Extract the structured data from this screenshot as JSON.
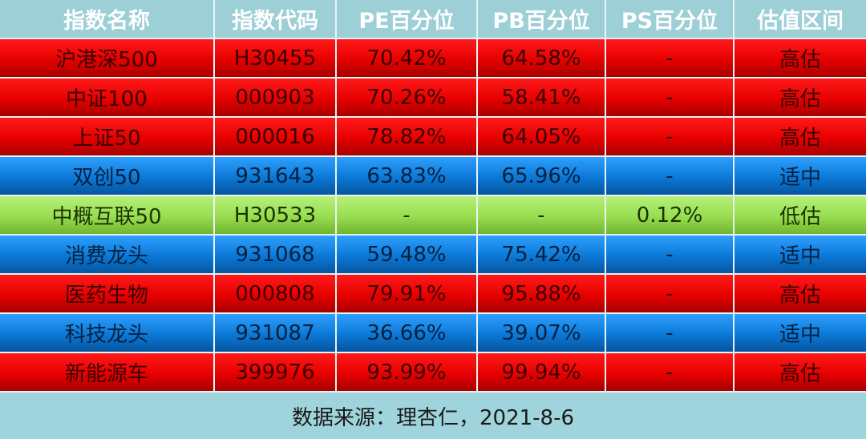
{
  "colors": {
    "header_bg": "#9ccfd6",
    "high": "#e60000",
    "mid": "#0b78d6",
    "low": "#98dc4f",
    "footer_bg": "#9fd4dc"
  },
  "headers": [
    "指数名称",
    "指数代码",
    "PE百分位",
    "PB百分位",
    "PS百分位",
    "估值区间"
  ],
  "rows": [
    {
      "level": "high",
      "cells": [
        "沪港深500",
        "H30455",
        "70.42%",
        "64.58%",
        "-",
        "高估"
      ]
    },
    {
      "level": "high",
      "cells": [
        "中证100",
        "000903",
        "70.26%",
        "58.41%",
        "-",
        "高估"
      ]
    },
    {
      "level": "high",
      "cells": [
        "上证50",
        "000016",
        "78.82%",
        "64.05%",
        "-",
        "高估"
      ]
    },
    {
      "level": "mid",
      "cells": [
        "双创50",
        "931643",
        "63.83%",
        "65.96%",
        "-",
        "适中"
      ]
    },
    {
      "level": "low",
      "cells": [
        "中概互联50",
        "H30533",
        "-",
        "-",
        "0.12%",
        "低估"
      ]
    },
    {
      "level": "mid",
      "cells": [
        "消费龙头",
        "931068",
        "59.48%",
        "75.42%",
        "-",
        "适中"
      ]
    },
    {
      "level": "high",
      "cells": [
        "医药生物",
        "000808",
        "79.91%",
        "95.88%",
        "-",
        "高估"
      ]
    },
    {
      "level": "mid",
      "cells": [
        "科技龙头",
        "931087",
        "36.66%",
        "39.07%",
        "-",
        "适中"
      ]
    },
    {
      "level": "high",
      "cells": [
        "新能源车",
        "399976",
        "93.99%",
        "99.94%",
        "-",
        "高估"
      ]
    }
  ],
  "footer": "数据来源：理杏仁，2021-8-6"
}
